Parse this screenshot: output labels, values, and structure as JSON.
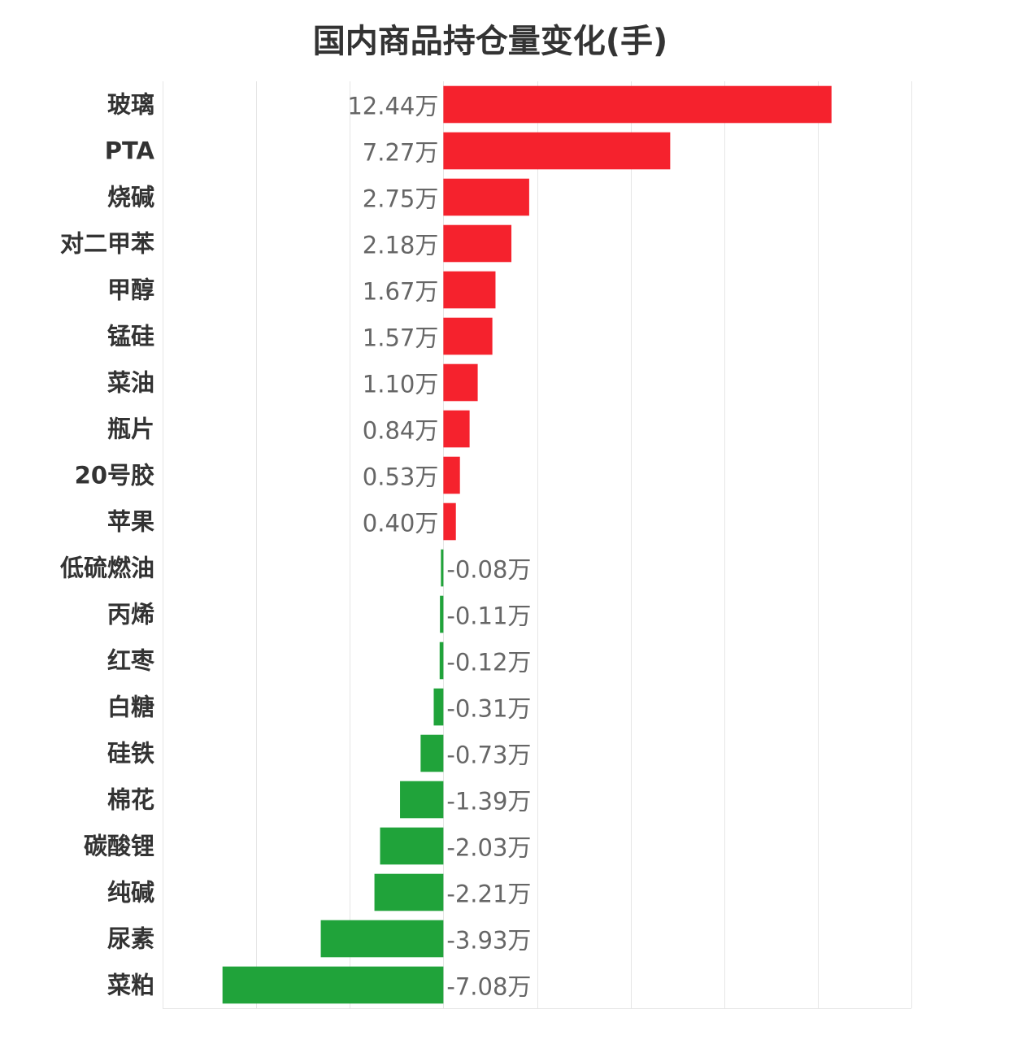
{
  "chart_data": {
    "type": "bar",
    "orientation": "horizontal",
    "title": "国内商品持仓量变化(手)",
    "unit": "万",
    "categories": [
      "玻璃",
      "PTA",
      "烧碱",
      "对二甲苯",
      "甲醇",
      "锰硅",
      "菜油",
      "瓶片",
      "20号胶",
      "苹果",
      "低硫燃油",
      "丙烯",
      "红枣",
      "白糖",
      "硅铁",
      "棉花",
      "碳酸锂",
      "纯碱",
      "尿素",
      "菜粕"
    ],
    "values": [
      12.44,
      7.27,
      2.75,
      2.18,
      1.67,
      1.57,
      1.1,
      0.84,
      0.53,
      0.4,
      -0.08,
      -0.11,
      -0.12,
      -0.31,
      -0.73,
      -1.39,
      -2.03,
      -2.21,
      -3.93,
      -7.08
    ],
    "value_labels": [
      "12.44万",
      "7.27万",
      "2.75万",
      "2.18万",
      "1.67万",
      "1.57万",
      "1.10万",
      "0.84万",
      "0.53万",
      "0.40万",
      "-0.08万",
      "-0.11万",
      "-0.12万",
      "-0.31万",
      "-0.73万",
      "-1.39万",
      "-2.03万",
      "-2.21万",
      "-3.93万",
      "-7.08万"
    ],
    "xlim": [
      -9,
      15
    ],
    "grid": true,
    "legend": "none",
    "colors": {
      "positive": "#f5222d",
      "negative": "#20a33a",
      "grid": "#e6e6e6"
    }
  }
}
